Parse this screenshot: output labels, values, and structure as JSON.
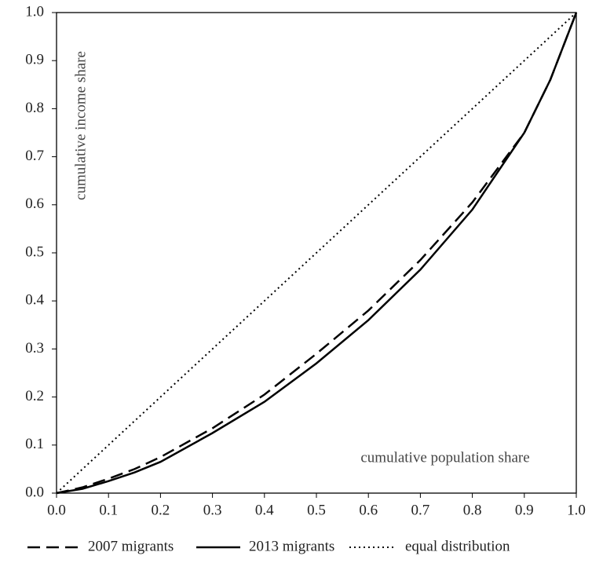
{
  "chart_data": {
    "type": "line",
    "x": [
      0,
      0.05,
      0.1,
      0.15,
      0.2,
      0.3,
      0.4,
      0.5,
      0.6,
      0.7,
      0.8,
      0.9,
      0.95,
      1.0
    ],
    "series": [
      {
        "name": "2007 migrants",
        "color": "#000000",
        "dash": "dashed",
        "values": [
          0,
          0.012,
          0.03,
          0.05,
          0.075,
          0.135,
          0.205,
          0.29,
          0.38,
          0.485,
          0.605,
          0.75,
          0.86,
          1.0
        ]
      },
      {
        "name": "2013 migrants",
        "color": "#000000",
        "dash": "solid",
        "values": [
          0,
          0.009,
          0.025,
          0.043,
          0.065,
          0.125,
          0.19,
          0.27,
          0.36,
          0.465,
          0.59,
          0.75,
          0.86,
          1.0
        ]
      },
      {
        "name": "equal distribution",
        "color": "#000000",
        "dash": "dotted",
        "values": [
          0,
          0.05,
          0.1,
          0.15,
          0.2,
          0.3,
          0.4,
          0.5,
          0.6,
          0.7,
          0.8,
          0.9,
          0.95,
          1.0
        ]
      }
    ],
    "y_label": "cumulative income share",
    "x_label": "cumulative population share",
    "xlim": [
      0,
      1
    ],
    "ylim": [
      0,
      1
    ],
    "xticks": [
      {
        "value": 0,
        "label": "0.0"
      },
      0.1,
      0.2,
      0.3,
      0.4,
      0.5,
      0.6,
      0.7,
      0.8,
      0.9,
      {
        "value": 1,
        "label": "1.0"
      }
    ],
    "yticks": [
      {
        "value": 0,
        "label": "0.0"
      },
      0.1,
      0.2,
      0.3,
      0.4,
      0.5,
      0.6,
      0.7,
      0.8,
      0.9,
      {
        "value": 1,
        "label": "1.0"
      }
    ],
    "legend": "bottom"
  }
}
